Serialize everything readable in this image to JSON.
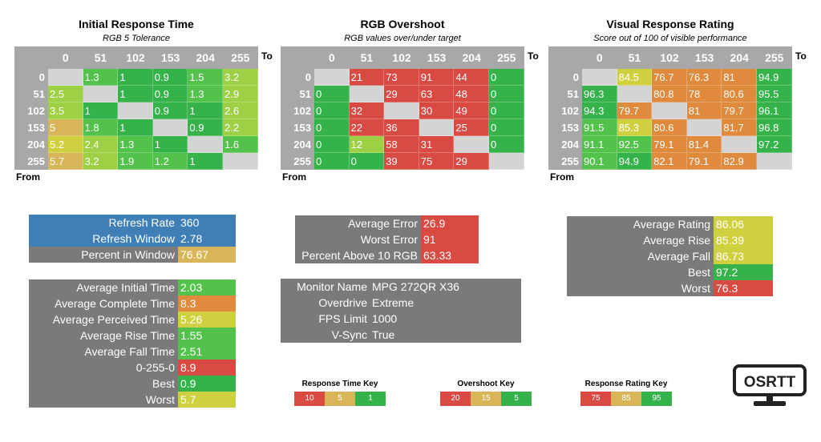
{
  "colors": {
    "grey": "#7a7a7a",
    "blue": "#3f7fb5",
    "green_dark": "#35b34a",
    "green": "#52c24a",
    "lime": "#9ed046",
    "yellow": "#cfd040",
    "tan": "#d9b55a",
    "orange": "#e08a3e",
    "red": "#d94a43",
    "empty": "#d4d4d4"
  },
  "headers": [
    "0",
    "51",
    "102",
    "153",
    "204",
    "255"
  ],
  "to_label": "To",
  "from_label": "From",
  "matrices": [
    {
      "title": "Initial Response Time",
      "subtitle": "RGB 5 Tolerance",
      "rows": [
        {
          "h": "0",
          "cells": [
            {
              "v": "",
              "c": "empty"
            },
            {
              "v": "1.3",
              "c": "green"
            },
            {
              "v": "1",
              "c": "green_dark"
            },
            {
              "v": "0.9",
              "c": "green_dark"
            },
            {
              "v": "1.5",
              "c": "green"
            },
            {
              "v": "3.2",
              "c": "lime"
            }
          ]
        },
        {
          "h": "51",
          "cells": [
            {
              "v": "2.5",
              "c": "lime"
            },
            {
              "v": "",
              "c": "empty"
            },
            {
              "v": "1",
              "c": "green_dark"
            },
            {
              "v": "0.9",
              "c": "green_dark"
            },
            {
              "v": "1.3",
              "c": "green"
            },
            {
              "v": "2.9",
              "c": "lime"
            }
          ]
        },
        {
          "h": "102",
          "cells": [
            {
              "v": "3.5",
              "c": "lime"
            },
            {
              "v": "1",
              "c": "green_dark"
            },
            {
              "v": "",
              "c": "empty"
            },
            {
              "v": "0.9",
              "c": "green_dark"
            },
            {
              "v": "1",
              "c": "green_dark"
            },
            {
              "v": "2.6",
              "c": "lime"
            }
          ]
        },
        {
          "h": "153",
          "cells": [
            {
              "v": "5",
              "c": "tan"
            },
            {
              "v": "1.8",
              "c": "green"
            },
            {
              "v": "1",
              "c": "green_dark"
            },
            {
              "v": "",
              "c": "empty"
            },
            {
              "v": "0.9",
              "c": "green_dark"
            },
            {
              "v": "2.2",
              "c": "lime"
            }
          ]
        },
        {
          "h": "204",
          "cells": [
            {
              "v": "5.2",
              "c": "yellow"
            },
            {
              "v": "2.4",
              "c": "lime"
            },
            {
              "v": "1.3",
              "c": "green"
            },
            {
              "v": "1",
              "c": "green_dark"
            },
            {
              "v": "",
              "c": "empty"
            },
            {
              "v": "1.6",
              "c": "green"
            }
          ]
        },
        {
          "h": "255",
          "cells": [
            {
              "v": "5.7",
              "c": "tan"
            },
            {
              "v": "3.2",
              "c": "lime"
            },
            {
              "v": "1.9",
              "c": "green"
            },
            {
              "v": "1.2",
              "c": "green"
            },
            {
              "v": "1",
              "c": "green_dark"
            },
            {
              "v": "",
              "c": "empty"
            }
          ]
        }
      ]
    },
    {
      "title": "RGB Overshoot",
      "subtitle": "RGB values over/under target",
      "rows": [
        {
          "h": "0",
          "cells": [
            {
              "v": "",
              "c": "empty"
            },
            {
              "v": "21",
              "c": "red"
            },
            {
              "v": "73",
              "c": "red"
            },
            {
              "v": "91",
              "c": "red"
            },
            {
              "v": "44",
              "c": "red"
            },
            {
              "v": "0",
              "c": "green_dark"
            }
          ]
        },
        {
          "h": "51",
          "cells": [
            {
              "v": "0",
              "c": "green_dark"
            },
            {
              "v": "",
              "c": "empty"
            },
            {
              "v": "29",
              "c": "red"
            },
            {
              "v": "63",
              "c": "red"
            },
            {
              "v": "48",
              "c": "red"
            },
            {
              "v": "0",
              "c": "green_dark"
            }
          ]
        },
        {
          "h": "102",
          "cells": [
            {
              "v": "0",
              "c": "green_dark"
            },
            {
              "v": "32",
              "c": "red"
            },
            {
              "v": "",
              "c": "empty"
            },
            {
              "v": "30",
              "c": "red"
            },
            {
              "v": "49",
              "c": "red"
            },
            {
              "v": "0",
              "c": "green_dark"
            }
          ]
        },
        {
          "h": "153",
          "cells": [
            {
              "v": "0",
              "c": "green_dark"
            },
            {
              "v": "22",
              "c": "red"
            },
            {
              "v": "36",
              "c": "red"
            },
            {
              "v": "",
              "c": "empty"
            },
            {
              "v": "25",
              "c": "red"
            },
            {
              "v": "0",
              "c": "green_dark"
            }
          ]
        },
        {
          "h": "204",
          "cells": [
            {
              "v": "0",
              "c": "green_dark"
            },
            {
              "v": "12",
              "c": "lime"
            },
            {
              "v": "58",
              "c": "red"
            },
            {
              "v": "31",
              "c": "red"
            },
            {
              "v": "",
              "c": "empty"
            },
            {
              "v": "0",
              "c": "green_dark"
            }
          ]
        },
        {
          "h": "255",
          "cells": [
            {
              "v": "0",
              "c": "green_dark"
            },
            {
              "v": "0",
              "c": "green_dark"
            },
            {
              "v": "39",
              "c": "red"
            },
            {
              "v": "75",
              "c": "red"
            },
            {
              "v": "29",
              "c": "red"
            },
            {
              "v": "",
              "c": "empty"
            }
          ]
        }
      ]
    },
    {
      "title": "Visual Response Rating",
      "subtitle": "Score out of 100 of visible performance",
      "rows": [
        {
          "h": "0",
          "cells": [
            {
              "v": "",
              "c": "empty"
            },
            {
              "v": "84.5",
              "c": "yellow"
            },
            {
              "v": "76.7",
              "c": "orange"
            },
            {
              "v": "76.3",
              "c": "orange"
            },
            {
              "v": "81",
              "c": "orange"
            },
            {
              "v": "94.9",
              "c": "green_dark"
            }
          ]
        },
        {
          "h": "51",
          "cells": [
            {
              "v": "96.3",
              "c": "green_dark"
            },
            {
              "v": "",
              "c": "empty"
            },
            {
              "v": "80.8",
              "c": "orange"
            },
            {
              "v": "78",
              "c": "orange"
            },
            {
              "v": "80.6",
              "c": "orange"
            },
            {
              "v": "95.5",
              "c": "green_dark"
            }
          ]
        },
        {
          "h": "102",
          "cells": [
            {
              "v": "94.3",
              "c": "green_dark"
            },
            {
              "v": "79.7",
              "c": "orange"
            },
            {
              "v": "",
              "c": "empty"
            },
            {
              "v": "81",
              "c": "orange"
            },
            {
              "v": "79.7",
              "c": "orange"
            },
            {
              "v": "96.1",
              "c": "green_dark"
            }
          ]
        },
        {
          "h": "153",
          "cells": [
            {
              "v": "91.5",
              "c": "green"
            },
            {
              "v": "85.3",
              "c": "yellow"
            },
            {
              "v": "80.6",
              "c": "orange"
            },
            {
              "v": "",
              "c": "empty"
            },
            {
              "v": "81.7",
              "c": "orange"
            },
            {
              "v": "96.8",
              "c": "green_dark"
            }
          ]
        },
        {
          "h": "204",
          "cells": [
            {
              "v": "91.1",
              "c": "green"
            },
            {
              "v": "92.5",
              "c": "green"
            },
            {
              "v": "79.1",
              "c": "orange"
            },
            {
              "v": "81.4",
              "c": "orange"
            },
            {
              "v": "",
              "c": "empty"
            },
            {
              "v": "97.2",
              "c": "green_dark"
            }
          ]
        },
        {
          "h": "255",
          "cells": [
            {
              "v": "90.1",
              "c": "green"
            },
            {
              "v": "94.9",
              "c": "green_dark"
            },
            {
              "v": "82.1",
              "c": "orange"
            },
            {
              "v": "79.1",
              "c": "orange"
            },
            {
              "v": "82.9",
              "c": "orange"
            },
            {
              "v": "",
              "c": "empty"
            }
          ]
        }
      ]
    }
  ],
  "refresh_panel": [
    {
      "label": "Refresh Rate",
      "value": "360",
      "label_bg": "blue",
      "value_bg": "blue"
    },
    {
      "label": "Refresh Window",
      "value": "2.78",
      "label_bg": "blue",
      "value_bg": "blue"
    },
    {
      "label": "Percent in Window",
      "value": "76.67",
      "label_bg": "grey",
      "value_bg": "tan"
    }
  ],
  "time_panel": [
    {
      "label": "Average Initial Time",
      "value": "2.03",
      "value_bg": "green"
    },
    {
      "label": "Average Complete Time",
      "value": "8.3",
      "value_bg": "orange"
    },
    {
      "label": "Average Perceived Time",
      "value": "5.26",
      "value_bg": "yellow"
    },
    {
      "label": "Average Rise Time",
      "value": "1.55",
      "value_bg": "green"
    },
    {
      "label": "Average Fall Time",
      "value": "2.51",
      "value_bg": "green"
    },
    {
      "label": "0-255-0",
      "value": "8.9",
      "value_bg": "red"
    },
    {
      "label": "Best",
      "value": "0.9",
      "value_bg": "green_dark"
    },
    {
      "label": "Worst",
      "value": "5.7",
      "value_bg": "yellow"
    }
  ],
  "error_panel": [
    {
      "label": "Average Error",
      "value": "26.9",
      "value_bg": "red"
    },
    {
      "label": "Worst Error",
      "value": "91",
      "value_bg": "red"
    },
    {
      "label": "Percent Above 10 RGB",
      "value": "63.33",
      "value_bg": "red"
    }
  ],
  "monitor_panel": [
    {
      "label": "Monitor Name",
      "value": "MPG 272QR X36"
    },
    {
      "label": "Overdrive",
      "value": "Extreme"
    },
    {
      "label": "FPS Limit",
      "value": "1000"
    },
    {
      "label": "V-Sync",
      "value": "True"
    }
  ],
  "rating_panel": [
    {
      "label": "Average Rating",
      "value": "86.06",
      "value_bg": "yellow"
    },
    {
      "label": "Average Rise",
      "value": "85.39",
      "value_bg": "yellow"
    },
    {
      "label": "Average Fall",
      "value": "86.73",
      "value_bg": "yellow"
    },
    {
      "label": "Best",
      "value": "97.2",
      "value_bg": "green_dark"
    },
    {
      "label": "Worst",
      "value": "76.3",
      "value_bg": "red"
    }
  ],
  "keys": [
    {
      "title": "Response Time Key",
      "items": [
        {
          "v": "10",
          "c": "red"
        },
        {
          "v": "5",
          "c": "tan"
        },
        {
          "v": "1",
          "c": "green_dark"
        }
      ]
    },
    {
      "title": "Overshoot Key",
      "items": [
        {
          "v": "20",
          "c": "red"
        },
        {
          "v": "15",
          "c": "tan"
        },
        {
          "v": "5",
          "c": "green_dark"
        }
      ]
    },
    {
      "title": "Response Rating Key",
      "items": [
        {
          "v": "75",
          "c": "red"
        },
        {
          "v": "85",
          "c": "tan"
        },
        {
          "v": "95",
          "c": "green_dark"
        }
      ]
    }
  ],
  "logo_text": "OSRTT"
}
